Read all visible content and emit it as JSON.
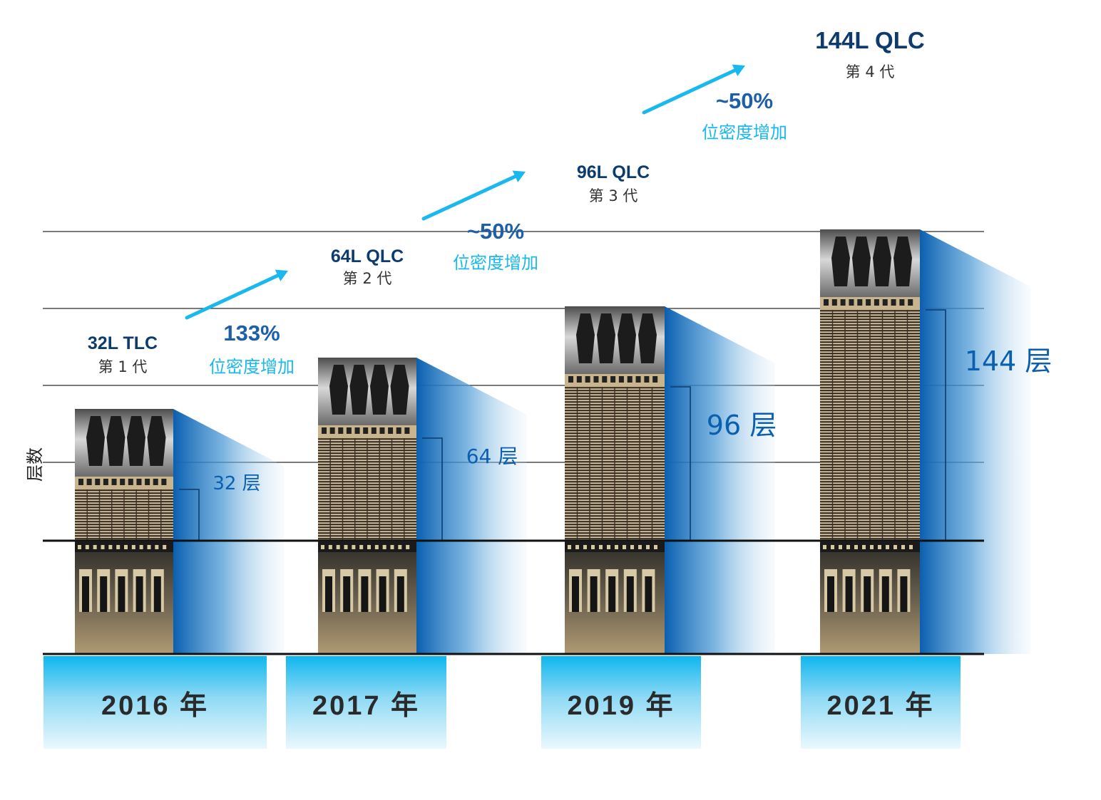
{
  "chart_data": {
    "type": "bar",
    "ylabel": "层数",
    "colors": {
      "blue_dark": "#0a5fb0",
      "cyan": "#19b8ef",
      "navy_text": "#0d3b6e",
      "tile_light": "#e4f6fd"
    },
    "bars": [
      {
        "year": "2016 年",
        "product": "32L TLC",
        "gen": "第 1 代",
        "layers": 32,
        "layer_label": "32 层"
      },
      {
        "year": "2017 年",
        "product": "64L QLC",
        "gen": "第 2 代",
        "layers": 64,
        "layer_label": "64 层"
      },
      {
        "year": "2019 年",
        "product": "96L QLC",
        "gen": "第 3 代",
        "layers": 96,
        "layer_label": "96 层"
      },
      {
        "year": "2021 年",
        "product": "144L QLC",
        "gen": "第 4 代",
        "layers": 144,
        "layer_label": "144 层"
      }
    ],
    "increases": [
      {
        "value": "133%",
        "label": "位密度增加"
      },
      {
        "value": "~50%",
        "label": "位密度增加"
      },
      {
        "value": "~50%",
        "label": "位密度增加"
      }
    ]
  }
}
